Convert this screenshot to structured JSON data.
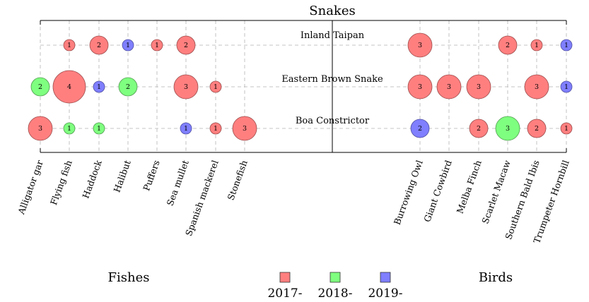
{
  "chart_data": {
    "type": "bubble-matrix",
    "title": "Snakes",
    "left_group_label": "Fishes",
    "right_group_label": "Birds",
    "rows": [
      "Inland Taipan",
      "Eastern Brown Snake",
      "Boa Constrictor"
    ],
    "left_columns": [
      "Alligator gar",
      "Flying fish",
      "Haddock",
      "Halibut",
      "Puffers",
      "Sea mullet",
      "Spanish mackerel",
      "Stonefish"
    ],
    "right_columns": [
      "Burrowing Owl",
      "Giant Cowbird",
      "Melba Finch",
      "Scarlet Macaw",
      "Southern Bald Ibis",
      "Trumpeter Hornbill"
    ],
    "legend": [
      {
        "label": "2017-",
        "color": "#ff7f7f"
      },
      {
        "label": "2018-",
        "color": "#7fff7f"
      },
      {
        "label": "2019-",
        "color": "#7f7fff"
      }
    ],
    "points": [
      {
        "row": "Inland Taipan",
        "column": "Flying fish",
        "value": 1,
        "series": "2017-"
      },
      {
        "row": "Inland Taipan",
        "column": "Haddock",
        "value": 2,
        "series": "2017-"
      },
      {
        "row": "Inland Taipan",
        "column": "Halibut",
        "value": 1,
        "series": "2019-"
      },
      {
        "row": "Inland Taipan",
        "column": "Puffers",
        "value": 1,
        "series": "2017-"
      },
      {
        "row": "Inland Taipan",
        "column": "Sea mullet",
        "value": 2,
        "series": "2017-"
      },
      {
        "row": "Inland Taipan",
        "column": "Burrowing Owl",
        "value": 3,
        "series": "2017-"
      },
      {
        "row": "Inland Taipan",
        "column": "Scarlet Macaw",
        "value": 2,
        "series": "2017-"
      },
      {
        "row": "Inland Taipan",
        "column": "Southern Bald Ibis",
        "value": 1,
        "series": "2017-"
      },
      {
        "row": "Inland Taipan",
        "column": "Trumpeter Hornbill",
        "value": 1,
        "series": "2019-"
      },
      {
        "row": "Eastern Brown Snake",
        "column": "Alligator gar",
        "value": 2,
        "series": "2018-"
      },
      {
        "row": "Eastern Brown Snake",
        "column": "Flying fish",
        "value": 4,
        "series": "2017-"
      },
      {
        "row": "Eastern Brown Snake",
        "column": "Haddock",
        "value": 1,
        "series": "2019-"
      },
      {
        "row": "Eastern Brown Snake",
        "column": "Halibut",
        "value": 2,
        "series": "2018-"
      },
      {
        "row": "Eastern Brown Snake",
        "column": "Sea mullet",
        "value": 3,
        "series": "2017-"
      },
      {
        "row": "Eastern Brown Snake",
        "column": "Spanish mackerel",
        "value": 1,
        "series": "2017-"
      },
      {
        "row": "Eastern Brown Snake",
        "column": "Burrowing Owl",
        "value": 3,
        "series": "2017-"
      },
      {
        "row": "Eastern Brown Snake",
        "column": "Giant Cowbird",
        "value": 3,
        "series": "2017-"
      },
      {
        "row": "Eastern Brown Snake",
        "column": "Melba Finch",
        "value": 3,
        "series": "2017-"
      },
      {
        "row": "Eastern Brown Snake",
        "column": "Southern Bald Ibis",
        "value": 3,
        "series": "2017-"
      },
      {
        "row": "Eastern Brown Snake",
        "column": "Trumpeter Hornbill",
        "value": 1,
        "series": "2019-"
      },
      {
        "row": "Boa Constrictor",
        "column": "Alligator gar",
        "value": 3,
        "series": "2017-"
      },
      {
        "row": "Boa Constrictor",
        "column": "Flying fish",
        "value": 1,
        "series": "2018-"
      },
      {
        "row": "Boa Constrictor",
        "column": "Haddock",
        "value": 1,
        "series": "2018-"
      },
      {
        "row": "Boa Constrictor",
        "column": "Sea mullet",
        "value": 1,
        "series": "2019-"
      },
      {
        "row": "Boa Constrictor",
        "column": "Spanish mackerel",
        "value": 1,
        "series": "2017-"
      },
      {
        "row": "Boa Constrictor",
        "column": "Stonefish",
        "value": 3,
        "series": "2017-"
      },
      {
        "row": "Boa Constrictor",
        "column": "Burrowing Owl",
        "value": 2,
        "series": "2019-"
      },
      {
        "row": "Boa Constrictor",
        "column": "Melba Finch",
        "value": 2,
        "series": "2017-"
      },
      {
        "row": "Boa Constrictor",
        "column": "Scarlet Macaw",
        "value": 3,
        "series": "2018-"
      },
      {
        "row": "Boa Constrictor",
        "column": "Southern Bald Ibis",
        "value": 2,
        "series": "2017-"
      },
      {
        "row": "Boa Constrictor",
        "column": "Trumpeter Hornbill",
        "value": 1,
        "series": "2017-"
      }
    ]
  }
}
